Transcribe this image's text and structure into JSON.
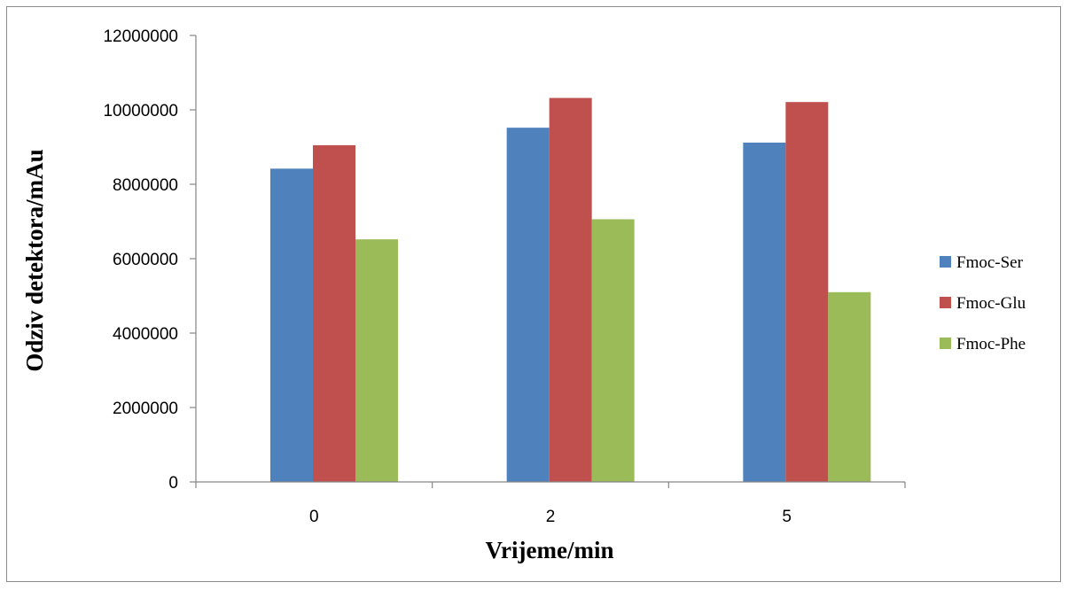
{
  "chart_data": {
    "type": "bar",
    "categories": [
      "0",
      "2",
      "5"
    ],
    "series": [
      {
        "name": "Fmoc-Ser",
        "color": "#4F81BD",
        "values": [
          8420000,
          9520000,
          9120000
        ]
      },
      {
        "name": "Fmoc-Glu",
        "color": "#C0504D",
        "values": [
          9050000,
          10320000,
          10210000
        ]
      },
      {
        "name": "Fmoc-Phe",
        "color": "#9BBB59",
        "values": [
          6520000,
          7060000,
          5100000
        ]
      }
    ],
    "xlabel": "Vrijeme/min",
    "ylabel": "Odziv detektora/mAu",
    "ylim": [
      0,
      12000000
    ],
    "yticks": [
      0,
      2000000,
      4000000,
      6000000,
      8000000,
      10000000,
      12000000
    ],
    "ytick_labels": [
      "0",
      "2000000",
      "4000000",
      "6000000",
      "8000000",
      "10000000",
      "12000000"
    ],
    "grid": false,
    "legend_position": "right"
  }
}
